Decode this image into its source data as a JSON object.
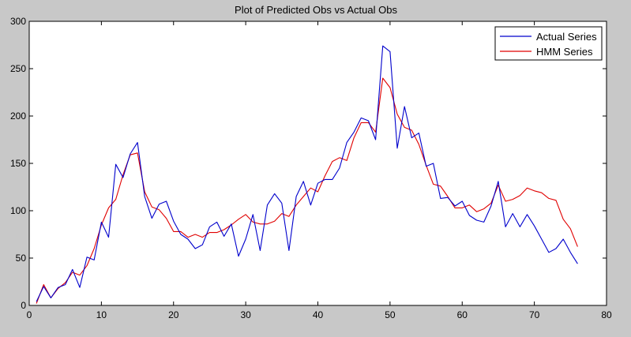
{
  "chart_data": {
    "type": "line",
    "title": "Plot of Predicted Obs vs Actual Obs",
    "xlabel": "",
    "ylabel": "",
    "xlim": [
      0,
      80
    ],
    "ylim": [
      0,
      300
    ],
    "xticks": [
      0,
      10,
      20,
      30,
      40,
      50,
      60,
      70,
      80
    ],
    "yticks": [
      0,
      50,
      100,
      150,
      200,
      250,
      300
    ],
    "grid": false,
    "legend_position": "top-right",
    "series": [
      {
        "name": "Actual Series",
        "color": "#0000cc",
        "x": [
          1,
          2,
          3,
          4,
          5,
          6,
          7,
          8,
          9,
          10,
          11,
          12,
          13,
          14,
          15,
          16,
          17,
          18,
          19,
          20,
          21,
          22,
          23,
          24,
          25,
          26,
          27,
          28,
          29,
          30,
          31,
          32,
          33,
          34,
          35,
          36,
          37,
          38,
          39,
          40,
          41,
          42,
          43,
          44,
          45,
          46,
          47,
          48,
          49,
          50,
          51,
          52,
          53,
          54,
          55,
          56,
          57,
          58,
          59,
          60,
          61,
          62,
          63,
          64,
          65,
          66,
          67,
          68,
          69,
          70,
          71,
          72,
          73,
          74,
          75,
          76
        ],
        "values": [
          4,
          20,
          8,
          19,
          22,
          38,
          19,
          51,
          48,
          88,
          72,
          149,
          135,
          160,
          172,
          115,
          92,
          107,
          110,
          89,
          75,
          70,
          60,
          64,
          83,
          88,
          73,
          86,
          52,
          70,
          96,
          58,
          106,
          118,
          108,
          58,
          115,
          131,
          106,
          129,
          133,
          133,
          145,
          172,
          183,
          198,
          195,
          175,
          274,
          268,
          166,
          210,
          177,
          182,
          147,
          150,
          113,
          114,
          105,
          110,
          95,
          90,
          88,
          105,
          131,
          83,
          97,
          83,
          96,
          84,
          70,
          56,
          60,
          70,
          56,
          44
        ]
      },
      {
        "name": "HMM Series",
        "color": "#e00000",
        "x": [
          1,
          2,
          3,
          4,
          5,
          6,
          7,
          8,
          9,
          10,
          11,
          12,
          13,
          14,
          15,
          16,
          17,
          18,
          19,
          20,
          21,
          22,
          23,
          24,
          25,
          26,
          27,
          28,
          29,
          30,
          31,
          32,
          33,
          34,
          35,
          36,
          37,
          38,
          39,
          40,
          41,
          42,
          43,
          44,
          45,
          46,
          47,
          48,
          49,
          50,
          51,
          52,
          53,
          54,
          55,
          56,
          57,
          58,
          59,
          60,
          61,
          62,
          63,
          64,
          65,
          66,
          67,
          68,
          69,
          70,
          71,
          72,
          73,
          74,
          75,
          76
        ],
        "values": [
          2,
          22,
          8,
          18,
          24,
          35,
          32,
          42,
          60,
          85,
          103,
          112,
          138,
          159,
          161,
          120,
          104,
          101,
          92,
          78,
          78,
          72,
          75,
          72,
          77,
          77,
          80,
          85,
          91,
          96,
          88,
          86,
          86,
          89,
          97,
          94,
          106,
          115,
          124,
          120,
          137,
          152,
          156,
          153,
          177,
          193,
          193,
          183,
          240,
          230,
          202,
          188,
          185,
          170,
          148,
          128,
          126,
          115,
          103,
          103,
          106,
          99,
          102,
          108,
          127,
          110,
          112,
          116,
          124,
          121,
          119,
          113,
          111,
          91,
          81,
          62
        ]
      }
    ]
  }
}
